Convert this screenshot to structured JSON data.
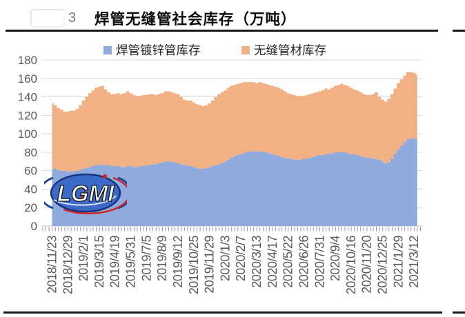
{
  "page": {
    "figure_number": "3",
    "title": "焊管无缝管社会库存（万吨）"
  },
  "legend": [
    {
      "label": "焊管镀锌管库存",
      "color": "#8FAADC"
    },
    {
      "label": "无缝管材库存",
      "color": "#F2B184"
    }
  ],
  "watermark": {
    "text": "LGMI"
  },
  "chart_data": {
    "type": "area",
    "stacked": true,
    "title": "焊管无缝管社会库存（万吨）",
    "xlabel": "",
    "ylabel": "",
    "ylim": [
      0,
      180
    ],
    "y_ticks": [
      0,
      20,
      40,
      60,
      80,
      100,
      120,
      140,
      160,
      180
    ],
    "grid": true,
    "legend_position": "top",
    "axis_label_color": "#595959",
    "gridline_color": "#d9d9d9",
    "label_every_n_points": 5,
    "x_labels": [
      "2018/11/23",
      "2018/12/29",
      "2019/2/1",
      "2019/3/15",
      "2019/4/19",
      "2019/5/31",
      "2019/7/5",
      "2019/8/9",
      "2019/9/12",
      "2019/10/25",
      "2019/11/29",
      "2020/1/3",
      "2020/2/7",
      "2020/3/13",
      "2020/4/17",
      "2020/5/22",
      "2020/6/26",
      "2020/7/31",
      "2020/9/4",
      "2020/10/16",
      "2020/11/20",
      "2020/12/25",
      "2021/1/29",
      "2021/3/12"
    ],
    "series": [
      {
        "name": "焊管镀锌管库存",
        "color": "#8FAADC",
        "values": [
          62,
          62,
          61,
          60,
          60,
          59,
          59,
          60,
          60,
          61,
          62,
          63,
          64,
          65,
          66,
          66,
          67,
          66,
          66,
          65,
          65,
          65,
          64,
          64,
          65,
          65,
          64,
          64,
          65,
          65,
          66,
          66,
          67,
          67,
          68,
          69,
          70,
          70,
          70,
          69,
          68,
          67,
          66,
          66,
          65,
          64,
          63,
          62,
          62,
          63,
          64,
          65,
          66,
          67,
          68,
          70,
          72,
          74,
          76,
          77,
          78,
          79,
          80,
          81,
          81,
          81,
          81,
          80,
          80,
          79,
          78,
          77,
          76,
          75,
          74,
          73,
          73,
          72,
          72,
          72,
          73,
          73,
          74,
          75,
          76,
          77,
          77,
          78,
          78,
          79,
          80,
          80,
          80,
          80,
          79,
          78,
          78,
          77,
          76,
          75,
          74,
          74,
          73,
          73,
          72,
          70,
          68,
          69,
          73,
          78,
          83,
          87,
          91,
          94,
          95,
          95,
          95
        ]
      },
      {
        "name": "无缝管材库存",
        "color": "#F2B184",
        "values": [
          71,
          69,
          67,
          66,
          64,
          65,
          66,
          65,
          67,
          70,
          74,
          77,
          80,
          82,
          84,
          85,
          85,
          82,
          79,
          78,
          78,
          79,
          79,
          80,
          81,
          79,
          78,
          77,
          76,
          77,
          76,
          77,
          76,
          75,
          75,
          75,
          76,
          76,
          75,
          75,
          75,
          73,
          71,
          70,
          71,
          70,
          69,
          69,
          68,
          68,
          69,
          71,
          74,
          76,
          77,
          77,
          78,
          78,
          77,
          77,
          77,
          77,
          76,
          75,
          75,
          74,
          75,
          75,
          74,
          74,
          74,
          74,
          74,
          73,
          72,
          71,
          70,
          70,
          69,
          69,
          68,
          69,
          69,
          69,
          69,
          69,
          70,
          71,
          70,
          71,
          72,
          73,
          74,
          73,
          73,
          72,
          70,
          70,
          69,
          68,
          68,
          68,
          70,
          72,
          68,
          67,
          67,
          69,
          70,
          71,
          72,
          72,
          72,
          73,
          72,
          71,
          69
        ]
      }
    ]
  }
}
